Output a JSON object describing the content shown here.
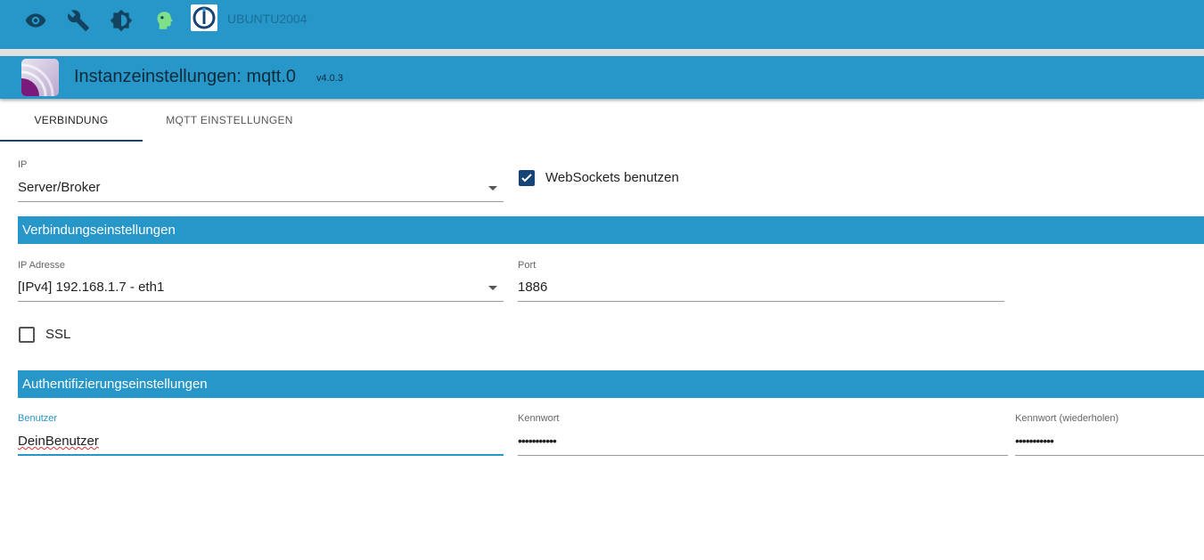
{
  "topbar": {
    "icons": [
      "eye-icon",
      "wrench-icon",
      "brightness-icon",
      "head-icon"
    ],
    "host": "UBUNTU2004"
  },
  "header": {
    "title": "Instanzeinstellungen: mqtt.0",
    "version": "v4.0.3"
  },
  "tabs": [
    {
      "label": "VERBINDUNG",
      "active": true
    },
    {
      "label": "MQTT EINSTELLUNGEN",
      "active": false
    }
  ],
  "form": {
    "ip_label": "IP",
    "ip_value": "Server/Broker",
    "websockets_label": "WebSockets benutzen",
    "websockets_checked": true,
    "section1": "Verbindungseinstellungen",
    "ipaddr_label": "IP Adresse",
    "ipaddr_value": "[IPv4] 192.168.1.7 - eth1",
    "port_label": "Port",
    "port_value": "1886",
    "ssl_label": "SSL",
    "ssl_checked": false,
    "section2": "Authentifizierungseinstellungen",
    "user_label": "Benutzer",
    "user_value": "DeinBenutzer",
    "pw_label": "Kennwort",
    "pw_value": "•••••••••••",
    "pw2_label": "Kennwort (wiederholen)",
    "pw2_value": "•••••••••••"
  },
  "colors": {
    "primary": "#2796c9",
    "accent": "#164477"
  }
}
